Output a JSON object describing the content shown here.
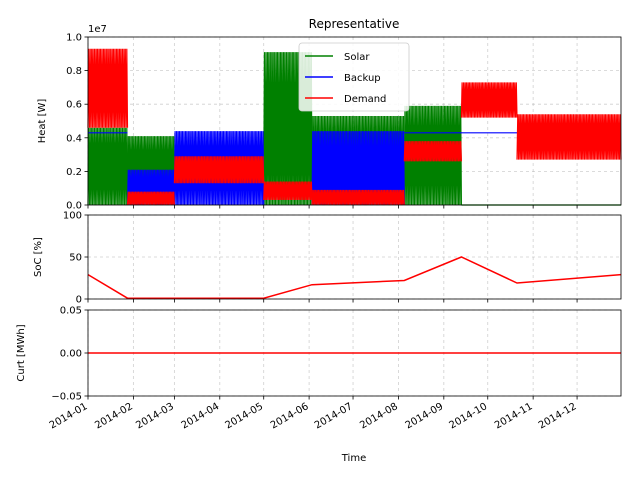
{
  "chart_data": [
    {
      "type": "line",
      "title": "Representative",
      "ylabel": "Heat [W]",
      "offset_label": "1e7",
      "ylim": [
        0,
        1.0
      ],
      "yticks": [
        "0.0",
        "0.2",
        "0.4",
        "0.6",
        "0.8",
        "1.0"
      ],
      "grid": true,
      "legend": {
        "placement": "top-center",
        "entries": [
          "Solar",
          "Backup",
          "Demand"
        ]
      },
      "series": [
        {
          "name": "Solar",
          "color": "#008000",
          "segments": [
            {
              "x": [
                "2014-01-01",
                "2014-01-28"
              ],
              "min": 0.0,
              "max": 0.46,
              "kind": "oscillate"
            },
            {
              "x": [
                "2014-01-28",
                "2014-03-01"
              ],
              "min": 0.0,
              "max": 0.41,
              "kind": "oscillate"
            },
            {
              "x": [
                "2014-05-01",
                "2014-06-03"
              ],
              "min": 0.0,
              "max": 0.91,
              "kind": "oscillate"
            },
            {
              "x": [
                "2014-06-03",
                "2014-08-05"
              ],
              "min": 0.0,
              "max": 0.53,
              "kind": "oscillate"
            },
            {
              "x": [
                "2014-08-05",
                "2014-09-13"
              ],
              "min": 0.0,
              "max": 0.59,
              "kind": "oscillate"
            },
            {
              "x": [
                "2014-09-13",
                "2014-12-31"
              ],
              "min": 0.0,
              "max": 0.0,
              "kind": "flat"
            }
          ]
        },
        {
          "name": "Backup",
          "color": "#0000ff",
          "segments": [
            {
              "x": [
                "2014-01-01",
                "2014-01-28"
              ],
              "min": 0.43,
              "max": 0.43,
              "kind": "flat"
            },
            {
              "x": [
                "2014-01-28",
                "2014-03-01"
              ],
              "min": 0.0,
              "max": 0.21,
              "kind": "oscillate"
            },
            {
              "x": [
                "2014-03-01",
                "2014-05-01"
              ],
              "min": 0.0,
              "max": 0.44,
              "kind": "oscillate"
            },
            {
              "x": [
                "2014-06-03",
                "2014-08-05"
              ],
              "min": 0.0,
              "max": 0.44,
              "kind": "oscillate"
            },
            {
              "x": [
                "2014-08-05",
                "2014-12-31"
              ],
              "min": 0.43,
              "max": 0.43,
              "kind": "flat"
            }
          ]
        },
        {
          "name": "Demand",
          "color": "#ff0000",
          "segments": [
            {
              "x": [
                "2014-01-01",
                "2014-01-28"
              ],
              "min": 0.46,
              "max": 0.93,
              "kind": "oscillate"
            },
            {
              "x": [
                "2014-01-28",
                "2014-03-01"
              ],
              "min": 0.0,
              "max": 0.08,
              "kind": "oscillate"
            },
            {
              "x": [
                "2014-03-01",
                "2014-05-01"
              ],
              "min": 0.13,
              "max": 0.29,
              "kind": "oscillate"
            },
            {
              "x": [
                "2014-05-01",
                "2014-06-03"
              ],
              "min": 0.03,
              "max": 0.14,
              "kind": "oscillate"
            },
            {
              "x": [
                "2014-06-03",
                "2014-08-05"
              ],
              "min": 0.0,
              "max": 0.09,
              "kind": "oscillate"
            },
            {
              "x": [
                "2014-08-05",
                "2014-09-13"
              ],
              "min": 0.26,
              "max": 0.38,
              "kind": "oscillate"
            },
            {
              "x": [
                "2014-09-13",
                "2014-10-21"
              ],
              "min": 0.52,
              "max": 0.73,
              "kind": "oscillate"
            },
            {
              "x": [
                "2014-10-21",
                "2014-12-31"
              ],
              "min": 0.27,
              "max": 0.54,
              "kind": "oscillate"
            }
          ]
        }
      ]
    },
    {
      "type": "line",
      "ylabel": "SoC [%]",
      "ylim": [
        0,
        100
      ],
      "yticks": [
        "0",
        "50",
        "100"
      ],
      "grid": true,
      "series": [
        {
          "name": "SoC",
          "color": "#ff0000",
          "x": [
            "2014-01-01",
            "2014-01-28",
            "2014-03-01",
            "2014-05-01",
            "2014-06-03",
            "2014-08-05",
            "2014-09-13",
            "2014-10-21",
            "2014-12-31"
          ],
          "y": [
            29,
            1,
            1,
            1,
            17,
            22,
            50,
            19,
            29
          ]
        }
      ]
    },
    {
      "type": "line",
      "ylabel": "Curt [MWh]",
      "xlabel": "Time",
      "ylim": [
        -0.05,
        0.05
      ],
      "yticks": [
        "−0.05",
        "0.00",
        "0.05"
      ],
      "grid": true,
      "xticks": [
        "2014-01",
        "2014-02",
        "2014-03",
        "2014-04",
        "2014-05",
        "2014-06",
        "2014-07",
        "2014-08",
        "2014-09",
        "2014-10",
        "2014-11",
        "2014-12"
      ],
      "series": [
        {
          "name": "Curt",
          "color": "#ff0000",
          "x": [
            "2014-01-01",
            "2014-12-31"
          ],
          "y": [
            0.0,
            0.0
          ]
        }
      ]
    }
  ]
}
